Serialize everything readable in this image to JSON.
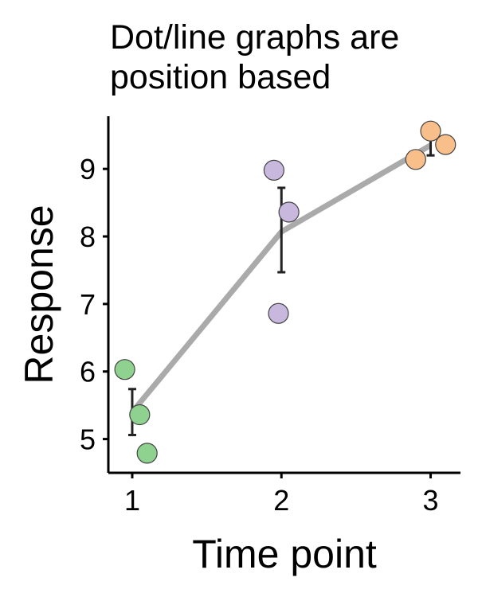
{
  "chart_data": {
    "type": "scatter",
    "title_lines": [
      "Dot/line graphs are",
      "position based"
    ],
    "xlabel": "Time point",
    "ylabel": "Response",
    "xlim": [
      0.84,
      3.2
    ],
    "ylim": [
      4.5,
      9.78
    ],
    "x_ticks": [
      1,
      2,
      3
    ],
    "y_ticks": [
      5,
      6,
      7,
      8,
      9
    ],
    "points": [
      {
        "x": 0.95,
        "y": 6.03,
        "group": 1
      },
      {
        "x": 1.05,
        "y": 5.36,
        "group": 1
      },
      {
        "x": 1.1,
        "y": 4.79,
        "group": 1
      },
      {
        "x": 1.95,
        "y": 8.98,
        "group": 2
      },
      {
        "x": 2.05,
        "y": 8.36,
        "group": 2
      },
      {
        "x": 1.98,
        "y": 6.86,
        "group": 2
      },
      {
        "x": 3.0,
        "y": 9.56,
        "group": 3
      },
      {
        "x": 3.1,
        "y": 9.36,
        "group": 3
      },
      {
        "x": 2.9,
        "y": 9.14,
        "group": 3
      }
    ],
    "means": [
      {
        "x": 1,
        "y": 5.4,
        "err_low": 5.06,
        "err_high": 5.74
      },
      {
        "x": 2,
        "y": 8.07,
        "err_low": 7.47,
        "err_high": 8.72
      },
      {
        "x": 3,
        "y": 9.35,
        "err_low": 9.2,
        "err_high": 9.48
      }
    ],
    "group_colors": {
      "1": "#8fd18f",
      "2": "#c8b8de",
      "3": "#f9bf8a"
    },
    "line_color": "#aaaaaa",
    "errorbar_color": "#222222",
    "grid": false,
    "legend": "none"
  }
}
